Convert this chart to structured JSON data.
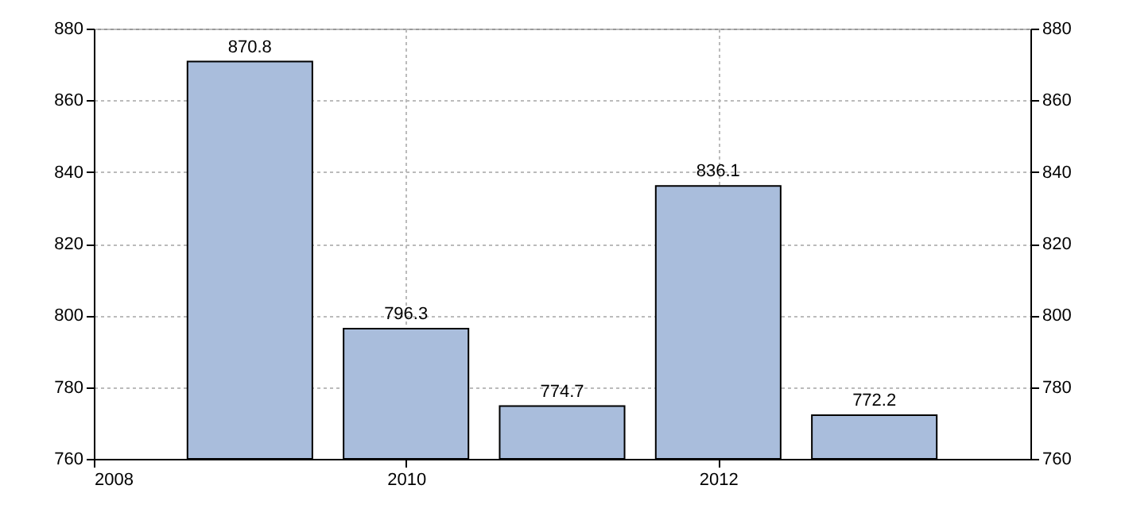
{
  "chart_data": {
    "type": "bar",
    "x": [
      2009,
      2010,
      2011,
      2012,
      2013
    ],
    "values": [
      870.8,
      796.3,
      774.7,
      836.1,
      772.2
    ],
    "color": "#a9bddc",
    "xlim": [
      2008,
      2014
    ],
    "xticks": [
      2008,
      2010,
      2012
    ],
    "ylim": [
      760,
      880
    ],
    "yticks": [
      760,
      780,
      800,
      820,
      840,
      860,
      880
    ],
    "y2lim": [
      760,
      880
    ],
    "y2ticks": [
      760,
      780,
      800,
      820,
      840,
      860,
      880
    ],
    "grid": true,
    "data_labels": true
  }
}
